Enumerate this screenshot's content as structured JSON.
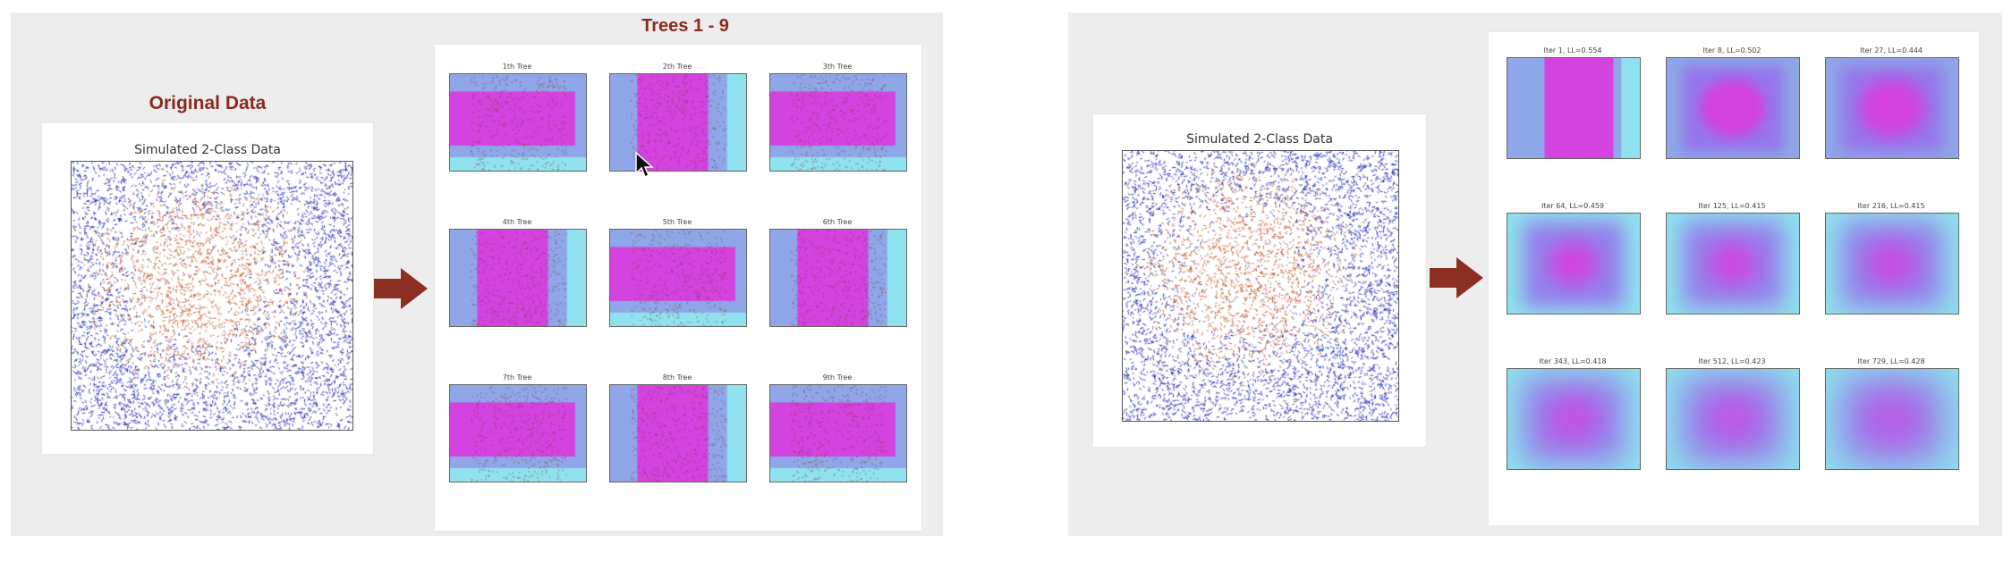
{
  "left": {
    "original_heading": "Original Data",
    "scatter_title": "Simulated 2-Class Data",
    "trees_heading": "Trees 1 - 9",
    "trees": [
      {
        "label": "1th Tree",
        "mode": "h"
      },
      {
        "label": "2th Tree",
        "mode": "v"
      },
      {
        "label": "3th Tree",
        "mode": "h"
      },
      {
        "label": "4th Tree",
        "mode": "v"
      },
      {
        "label": "5th Tree",
        "mode": "h"
      },
      {
        "label": "6th Tree",
        "mode": "v"
      },
      {
        "label": "7th Tree",
        "mode": "h"
      },
      {
        "label": "8th Tree",
        "mode": "v"
      },
      {
        "label": "9th Tree",
        "mode": "h"
      }
    ]
  },
  "right": {
    "scatter_title": "Simulated 2-Class Data",
    "iterations": [
      {
        "label": "Iter 1, LL=0.554"
      },
      {
        "label": "Iter 8, LL=0.502"
      },
      {
        "label": "Iter 27, LL=0.444"
      },
      {
        "label": "Iter 64, LL=0.459"
      },
      {
        "label": "Iter 125, LL=0.415"
      },
      {
        "label": "Iter 216, LL=0.415"
      },
      {
        "label": "Iter 343, LL=0.418"
      },
      {
        "label": "Iter 512, LL=0.423"
      },
      {
        "label": "Iter 729, LL=0.428"
      }
    ]
  },
  "colors": {
    "class_outer": "#1f2bb8",
    "class_inner": "#c0562a",
    "region_high": "#d442e0",
    "region_mid": "#8fa6e8",
    "region_low": "#8fe2ee",
    "arrow": "#8b2f22",
    "heading": "#8a2a1f"
  },
  "icons": [
    "right-arrow-icon",
    "mouse-pointer-icon"
  ]
}
